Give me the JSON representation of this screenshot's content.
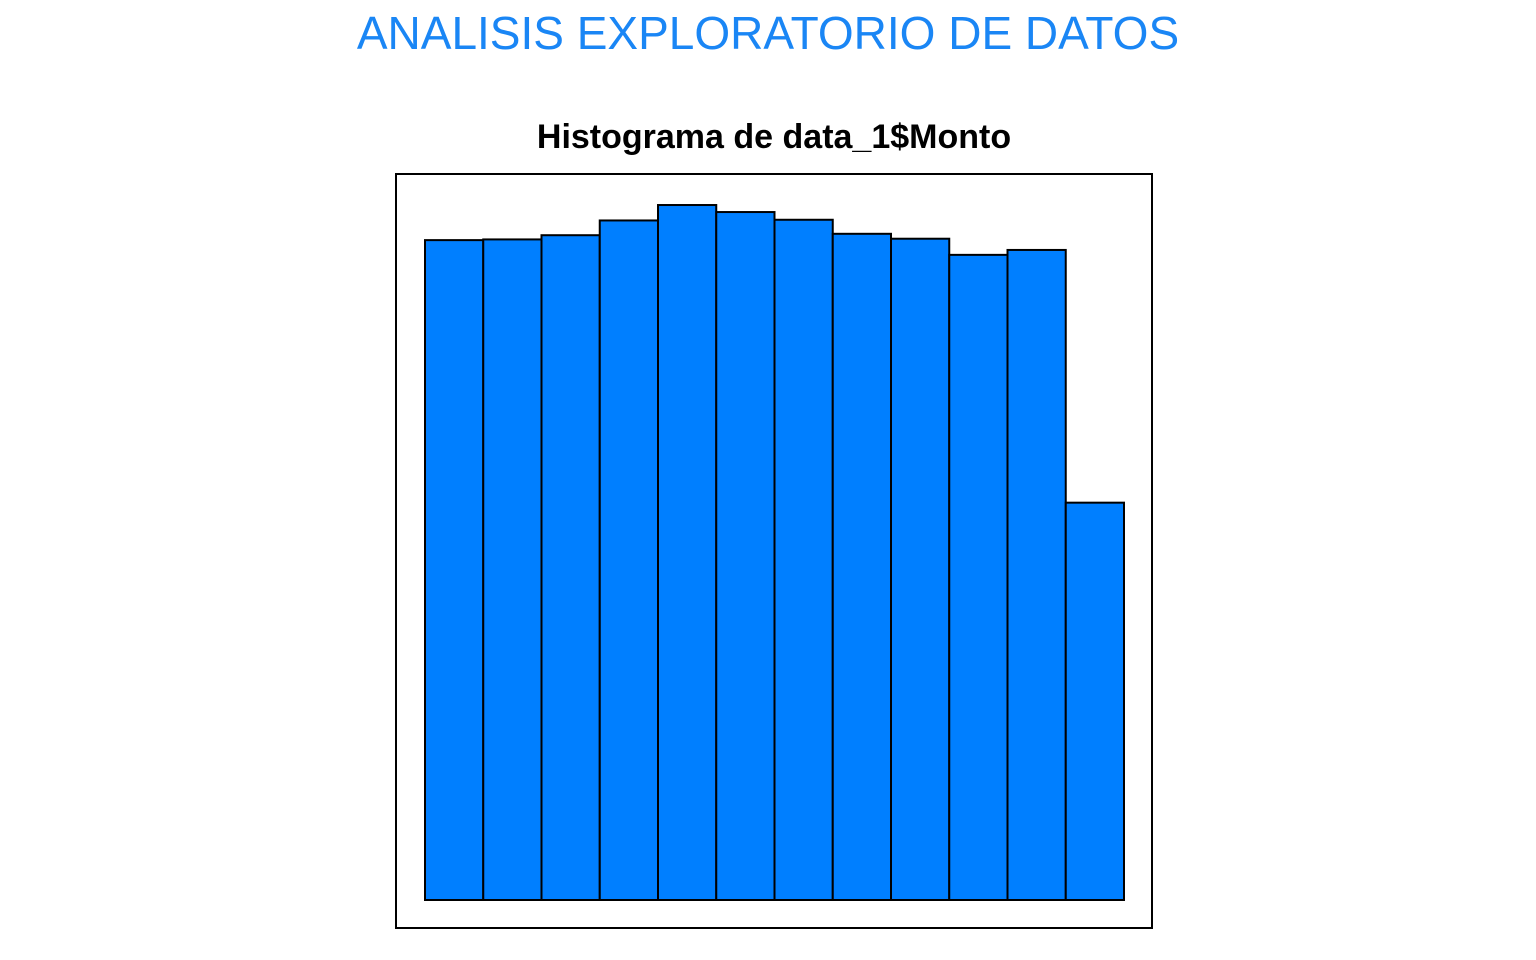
{
  "page": {
    "title": "ANALISIS EXPLORATORIO DE DATOS",
    "title_color": "#1A86F5"
  },
  "chart_data": {
    "type": "bar",
    "title": "Histograma de  data_1$Monto",
    "xlabel": "",
    "ylabel": "",
    "bar_color": "#007FFF",
    "border_color": "#000000",
    "axes_shown": false,
    "ylim": [
      0,
      100
    ],
    "values": [
      94.0,
      94.1,
      94.7,
      96.8,
      99.0,
      98.0,
      96.9,
      94.9,
      94.2,
      91.9,
      92.6,
      56.6
    ]
  }
}
